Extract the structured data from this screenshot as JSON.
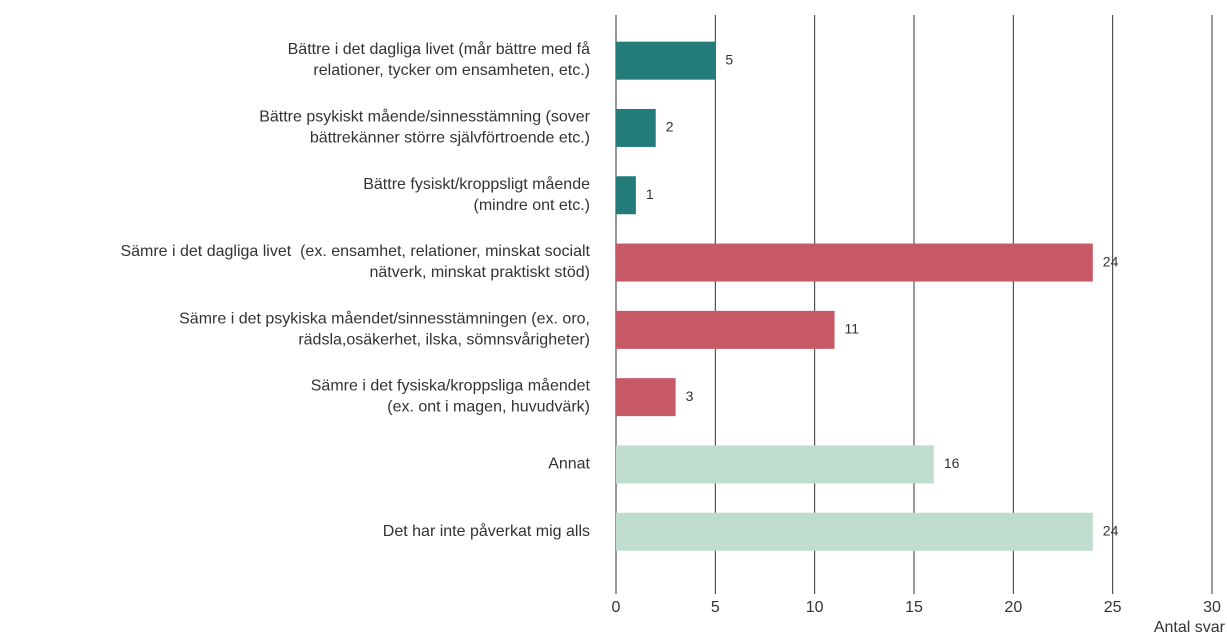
{
  "chart_data": {
    "type": "bar",
    "orientation": "horizontal",
    "categories": [
      [
        "Bättre i det dagliga livet (mår bättre med få",
        "relationer, tycker om ensamheten, etc.)"
      ],
      [
        "Bättre psykiskt mående/sinnesstämning (sover",
        "bättrekänner större självförtroende etc.)"
      ],
      [
        "Bättre fysiskt/kroppsligt mående",
        "(mindre ont etc.)"
      ],
      [
        "Sämre i det dagliga livet  (ex. ensamhet, relationer, minskat socialt",
        "nätverk, minskat praktiskt stöd)"
      ],
      [
        "Sämre i det psykiska måendet/sinnesstämningen (ex. oro,",
        "rädsla,osäkerhet, ilska, sömnsvårigheter)"
      ],
      [
        "Sämre i det fysiska/kroppsliga måendet",
        "(ex. ont i magen, huvudvärk)"
      ],
      [
        "Annat"
      ],
      [
        "Det har inte påverkat mig alls"
      ]
    ],
    "values": [
      5,
      2,
      1,
      24,
      11,
      3,
      16,
      24
    ],
    "colors": [
      "#237b7a",
      "#237b7a",
      "#237b7a",
      "#c75865",
      "#c75865",
      "#c75865",
      "#bfddce",
      "#bfddce"
    ],
    "xlim": [
      0,
      30
    ],
    "xticks": [
      0,
      5,
      10,
      15,
      20,
      25,
      30
    ],
    "grid": true,
    "x_label": "Antal svar"
  }
}
